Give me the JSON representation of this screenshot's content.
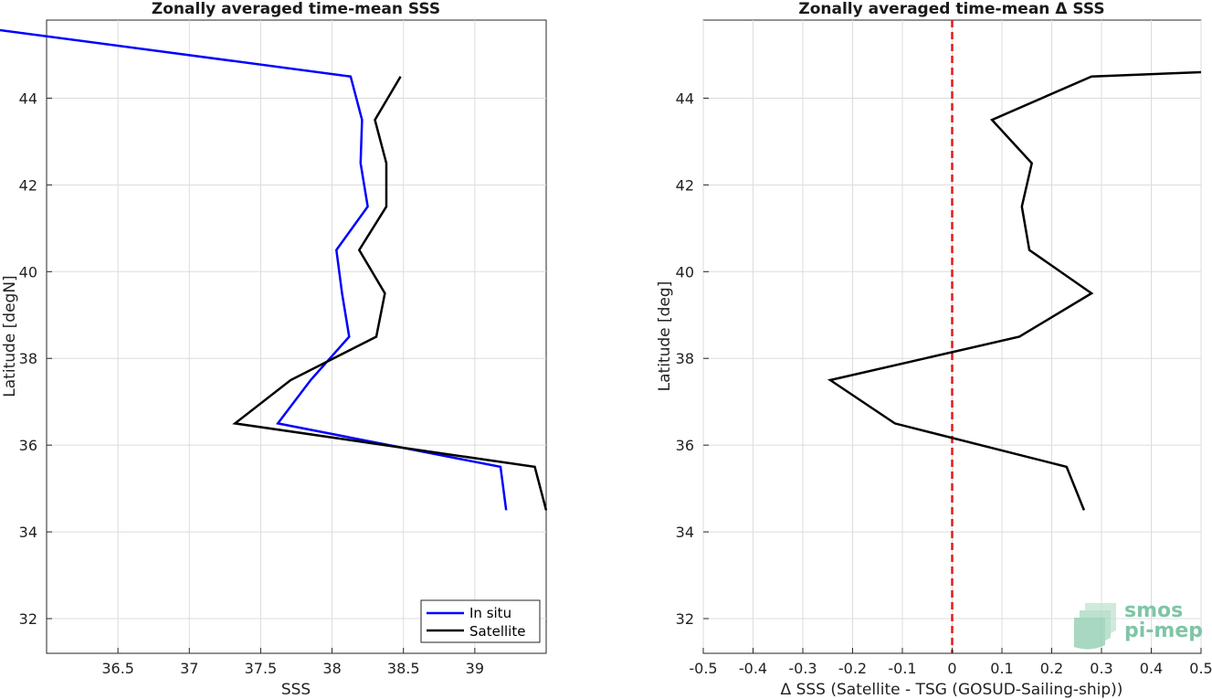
{
  "chart_data": [
    {
      "type": "line",
      "title": "Zonally averaged time-mean SSS",
      "xlabel": "SSS",
      "ylabel": "Latitude [degN]",
      "xlim": [
        36.0,
        39.5
      ],
      "ylim": [
        31.2,
        45.8
      ],
      "xticks": [
        "36.5",
        "37",
        "37.5",
        "38",
        "38.5",
        "39"
      ],
      "xtick_values": [
        36.5,
        37,
        37.5,
        38,
        38.5,
        39
      ],
      "yticks": [
        "32",
        "34",
        "36",
        "38",
        "40",
        "42",
        "44"
      ],
      "ytick_values": [
        32,
        34,
        36,
        38,
        40,
        42,
        44
      ],
      "grid": true,
      "legend_position": "bottom-right",
      "series": [
        {
          "name": "In situ",
          "color": "#0000ff",
          "x": [
            35.6,
            38.13,
            38.21,
            38.2,
            38.25,
            38.03,
            38.07,
            38.12,
            37.85,
            37.62,
            39.18,
            39.22
          ],
          "y": [
            45.6,
            44.5,
            43.5,
            42.5,
            41.5,
            40.5,
            39.5,
            38.5,
            37.5,
            36.5,
            35.5,
            34.5
          ]
        },
        {
          "name": "Satellite",
          "color": "#000000",
          "x": [
            38.48,
            38.3,
            38.38,
            38.38,
            38.19,
            38.37,
            38.31,
            37.71,
            37.32,
            39.42,
            39.5
          ],
          "y": [
            44.5,
            43.5,
            42.5,
            41.5,
            40.5,
            39.5,
            38.5,
            37.5,
            36.5,
            35.5,
            34.5
          ]
        }
      ]
    },
    {
      "type": "line",
      "title": "Zonally averaged time-mean Δ SSS",
      "xlabel": "Δ SSS (Satellite - TSG (GOSUD-Sailing-ship))",
      "ylabel": "Latitude [deg]",
      "xlim": [
        -0.5,
        0.5
      ],
      "ylim": [
        31.2,
        45.8
      ],
      "xticks": [
        "-0.5",
        "-0.4",
        "-0.3",
        "-0.2",
        "-0.1",
        "0",
        "0.1",
        "0.2",
        "0.3",
        "0.4",
        "0.5"
      ],
      "xtick_values": [
        -0.5,
        -0.4,
        -0.3,
        -0.2,
        -0.1,
        0,
        0.1,
        0.2,
        0.3,
        0.4,
        0.5
      ],
      "yticks": [
        "32",
        "34",
        "36",
        "38",
        "40",
        "42",
        "44"
      ],
      "ytick_values": [
        32,
        34,
        36,
        38,
        40,
        42,
        44
      ],
      "grid": true,
      "reference_line": {
        "x": 0,
        "color": "#e31a1c",
        "style": "dashed"
      },
      "series": [
        {
          "color": "#000000",
          "x": [
            0.5,
            0.28,
            0.08,
            0.16,
            0.14,
            0.155,
            0.28,
            0.135,
            -0.245,
            -0.115,
            0.23,
            0.265
          ],
          "y": [
            44.6,
            44.5,
            43.5,
            42.5,
            41.5,
            40.5,
            39.5,
            38.5,
            37.5,
            36.5,
            35.5,
            34.5
          ]
        }
      ]
    }
  ],
  "logo": {
    "line1": "smos",
    "line2": "pi-mep",
    "color": "#7fc5a6"
  }
}
